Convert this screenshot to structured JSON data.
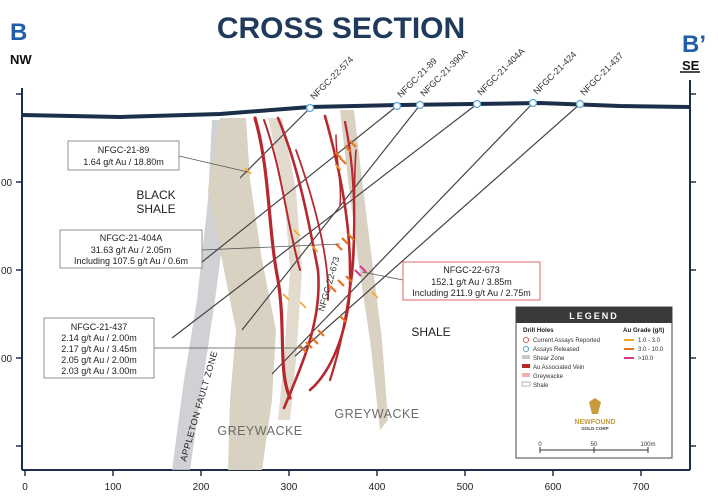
{
  "title": "CROSS SECTION",
  "left_marker": {
    "letter": "B",
    "direction": "NW"
  },
  "right_marker": {
    "letter": "B’",
    "direction": "SE"
  },
  "x_axis": {
    "ticks": [
      "0",
      "100",
      "200",
      "300",
      "400",
      "500",
      "600",
      "700"
    ]
  },
  "y_axis": {
    "tick_fragments": [
      "00",
      "00",
      "00"
    ]
  },
  "drill_holes": [
    "NFGC-22-574",
    "NFGC-21-89",
    "NFGC-21-390A",
    "NFGC-21-404A",
    "NFGC-21-424",
    "NFGC-21-437"
  ],
  "rock_labels": {
    "black_shale_1": "BLACK",
    "black_shale_2": "SHALE",
    "shale": "SHALE",
    "greywacke_left": "GREYWACKE",
    "greywacke_right": "GREYWACKE",
    "fault_zone": "APPLETON FAULT ZONE",
    "vein_hole_label": "NFGC-22-673"
  },
  "callouts": [
    {
      "id": "nfgc-21-89",
      "lines": [
        "NFGC-21-89",
        "1.64 g/t Au / 18.80m"
      ]
    },
    {
      "id": "nfgc-21-404a",
      "lines": [
        "NFGC-21-404A",
        "31.63 g/t Au / 2.05m",
        "Including 107.5 g/t Au / 0.6m"
      ]
    },
    {
      "id": "nfgc-22-673",
      "lines": [
        "NFGC-22-673",
        "152.1 g/t Au / 3.85m",
        "Including 211.9 g/t Au / 2.75m"
      ]
    },
    {
      "id": "nfgc-21-437",
      "lines": [
        "NFGC-21-437",
        "2.14 g/t Au / 2.00m",
        "2.17 g/t Au / 3.45m",
        "2.05 g/t Au / 2.00m",
        "2.03 g/t Au / 3.00m"
      ]
    }
  ],
  "legend": {
    "title": "LEGEND",
    "drill_holes_heading": "Drill Holes",
    "au_grade_heading": "Au Grade (g/t)",
    "items": [
      "Current Assays Reported",
      "Assays Released",
      "Shear Zone",
      "Au Associated Vein",
      "Greywacke",
      "Shale"
    ],
    "grades": [
      "1.0 - 3.0",
      "3.0 - 10.0",
      ">10.0"
    ],
    "logo_line1": "NEWFOUND",
    "logo_line2": "GOLD CORP",
    "scale": [
      "0",
      "50",
      "100m"
    ]
  },
  "colors": {
    "title": "#1f3a5a",
    "marker_letter": "#1f5fa8",
    "surface": "#1b2f4a",
    "vein": "#b7282e",
    "greywacke": "#d9d1c1",
    "fault": "#c7c9cc",
    "grade_low": "#f5a623",
    "grade_mid": "#e8731a",
    "grade_high": "#d9368f",
    "callout_highlight": "#e06666"
  }
}
